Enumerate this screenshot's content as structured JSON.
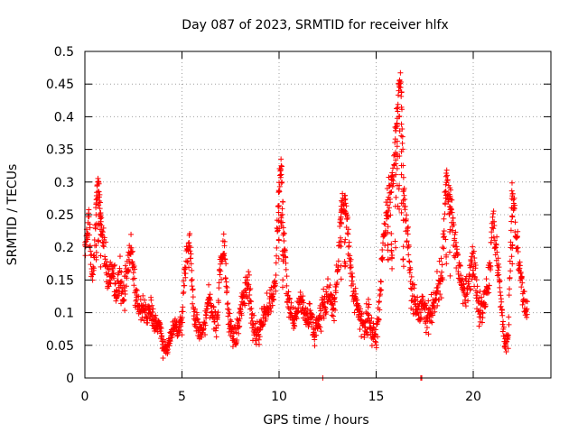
{
  "chart_data": {
    "type": "scatter",
    "title": "Day 087 of 2023, SRMTID for receiver hlfx",
    "xlabel": "GPS time / hours",
    "ylabel": "SRMTID / TECUs",
    "xlim": [
      0,
      24
    ],
    "ylim": [
      0,
      0.5
    ],
    "xticks": [
      0,
      5,
      10,
      15,
      20
    ],
    "xtick_labels": [
      "0",
      "5",
      "10",
      "15",
      "20"
    ],
    "yticks": [
      0,
      0.05,
      0.1,
      0.15,
      0.2,
      0.25,
      0.3,
      0.35,
      0.4,
      0.45,
      0.5
    ],
    "ytick_labels": [
      "0",
      "0.05",
      "0.1",
      "0.15",
      "0.2",
      "0.25",
      "0.3",
      "0.35",
      "0.4",
      "0.45",
      "0.5"
    ],
    "grid": true,
    "marker": "plus",
    "marker_color": "#ff0000",
    "series": [
      {
        "name": "SRMTID",
        "x": [
          0.0,
          0.1,
          0.2,
          0.3,
          0.4,
          0.5,
          0.6,
          0.7,
          0.8,
          0.9,
          1.0,
          1.2,
          1.4,
          1.6,
          1.8,
          2.0,
          2.2,
          2.4,
          2.6,
          2.8,
          3.0,
          3.2,
          3.4,
          3.6,
          3.8,
          4.0,
          4.2,
          4.4,
          4.6,
          4.8,
          5.0,
          5.2,
          5.4,
          5.6,
          5.8,
          6.0,
          6.2,
          6.4,
          6.6,
          6.8,
          7.0,
          7.2,
          7.4,
          7.6,
          7.8,
          8.0,
          8.2,
          8.4,
          8.6,
          8.8,
          9.0,
          9.2,
          9.4,
          9.6,
          9.8,
          10.0,
          10.1,
          10.2,
          10.3,
          10.4,
          10.6,
          10.8,
          11.0,
          11.2,
          11.4,
          11.6,
          11.8,
          12.0,
          12.2,
          12.4,
          12.6,
          12.8,
          13.0,
          13.2,
          13.4,
          13.6,
          13.8,
          14.0,
          14.2,
          14.4,
          14.6,
          14.8,
          15.0,
          15.2,
          15.4,
          15.6,
          15.8,
          16.0,
          16.1,
          16.2,
          16.3,
          16.4,
          16.6,
          16.8,
          17.0,
          17.2,
          17.4,
          17.6,
          17.8,
          18.0,
          18.2,
          18.4,
          18.6,
          18.8,
          19.0,
          19.2,
          19.4,
          19.6,
          19.8,
          20.0,
          20.2,
          20.4,
          20.6,
          20.8,
          21.0,
          21.2,
          21.4,
          21.6,
          21.8,
          22.0,
          22.2,
          22.4,
          22.6,
          22.8
        ],
        "values": [
          0.21,
          0.22,
          0.24,
          0.19,
          0.15,
          0.2,
          0.28,
          0.3,
          0.26,
          0.21,
          0.2,
          0.15,
          0.16,
          0.13,
          0.15,
          0.12,
          0.17,
          0.19,
          0.13,
          0.11,
          0.1,
          0.09,
          0.11,
          0.08,
          0.09,
          0.05,
          0.04,
          0.06,
          0.08,
          0.07,
          0.09,
          0.18,
          0.21,
          0.1,
          0.08,
          0.07,
          0.09,
          0.12,
          0.1,
          0.08,
          0.18,
          0.19,
          0.09,
          0.07,
          0.06,
          0.1,
          0.13,
          0.15,
          0.09,
          0.06,
          0.08,
          0.09,
          0.11,
          0.12,
          0.14,
          0.3,
          0.33,
          0.25,
          0.18,
          0.14,
          0.1,
          0.08,
          0.11,
          0.12,
          0.09,
          0.1,
          0.07,
          0.08,
          0.11,
          0.12,
          0.13,
          0.1,
          0.15,
          0.26,
          0.28,
          0.2,
          0.14,
          0.11,
          0.09,
          0.08,
          0.1,
          0.07,
          0.06,
          0.13,
          0.22,
          0.27,
          0.3,
          0.36,
          0.41,
          0.46,
          0.44,
          0.3,
          0.22,
          0.14,
          0.11,
          0.1,
          0.12,
          0.09,
          0.1,
          0.11,
          0.14,
          0.16,
          0.31,
          0.28,
          0.22,
          0.18,
          0.14,
          0.13,
          0.15,
          0.19,
          0.12,
          0.1,
          0.12,
          0.15,
          0.24,
          0.2,
          0.14,
          0.05,
          0.06,
          0.29,
          0.22,
          0.17,
          0.12,
          0.1
        ],
        "spread": [
          0.03,
          0.03,
          0.03,
          0.03,
          0.03,
          0.03,
          0.03,
          0.03,
          0.03,
          0.03,
          0.05,
          0.04,
          0.04,
          0.04,
          0.04,
          0.04,
          0.04,
          0.04,
          0.04,
          0.04,
          0.03,
          0.03,
          0.03,
          0.03,
          0.03,
          0.02,
          0.02,
          0.02,
          0.02,
          0.02,
          0.03,
          0.03,
          0.04,
          0.03,
          0.03,
          0.02,
          0.03,
          0.03,
          0.03,
          0.03,
          0.04,
          0.04,
          0.03,
          0.03,
          0.03,
          0.03,
          0.03,
          0.04,
          0.03,
          0.03,
          0.03,
          0.03,
          0.03,
          0.03,
          0.04,
          0.04,
          0.03,
          0.04,
          0.04,
          0.04,
          0.03,
          0.03,
          0.03,
          0.03,
          0.03,
          0.03,
          0.03,
          0.03,
          0.04,
          0.04,
          0.04,
          0.04,
          0.04,
          0.04,
          0.04,
          0.04,
          0.04,
          0.03,
          0.03,
          0.03,
          0.04,
          0.03,
          0.03,
          0.04,
          0.04,
          0.05,
          0.05,
          0.04,
          0.03,
          0.02,
          0.03,
          0.05,
          0.05,
          0.04,
          0.04,
          0.03,
          0.03,
          0.03,
          0.04,
          0.04,
          0.04,
          0.05,
          0.04,
          0.05,
          0.05,
          0.04,
          0.04,
          0.04,
          0.04,
          0.04,
          0.04,
          0.03,
          0.03,
          0.04,
          0.04,
          0.04,
          0.04,
          0.02,
          0.03,
          0.03,
          0.04,
          0.04,
          0.03,
          0.03
        ],
        "outliers": [
          [
            12.25,
            0.0
          ],
          [
            17.3,
            0.0
          ],
          [
            17.35,
            0.0
          ]
        ]
      }
    ]
  }
}
